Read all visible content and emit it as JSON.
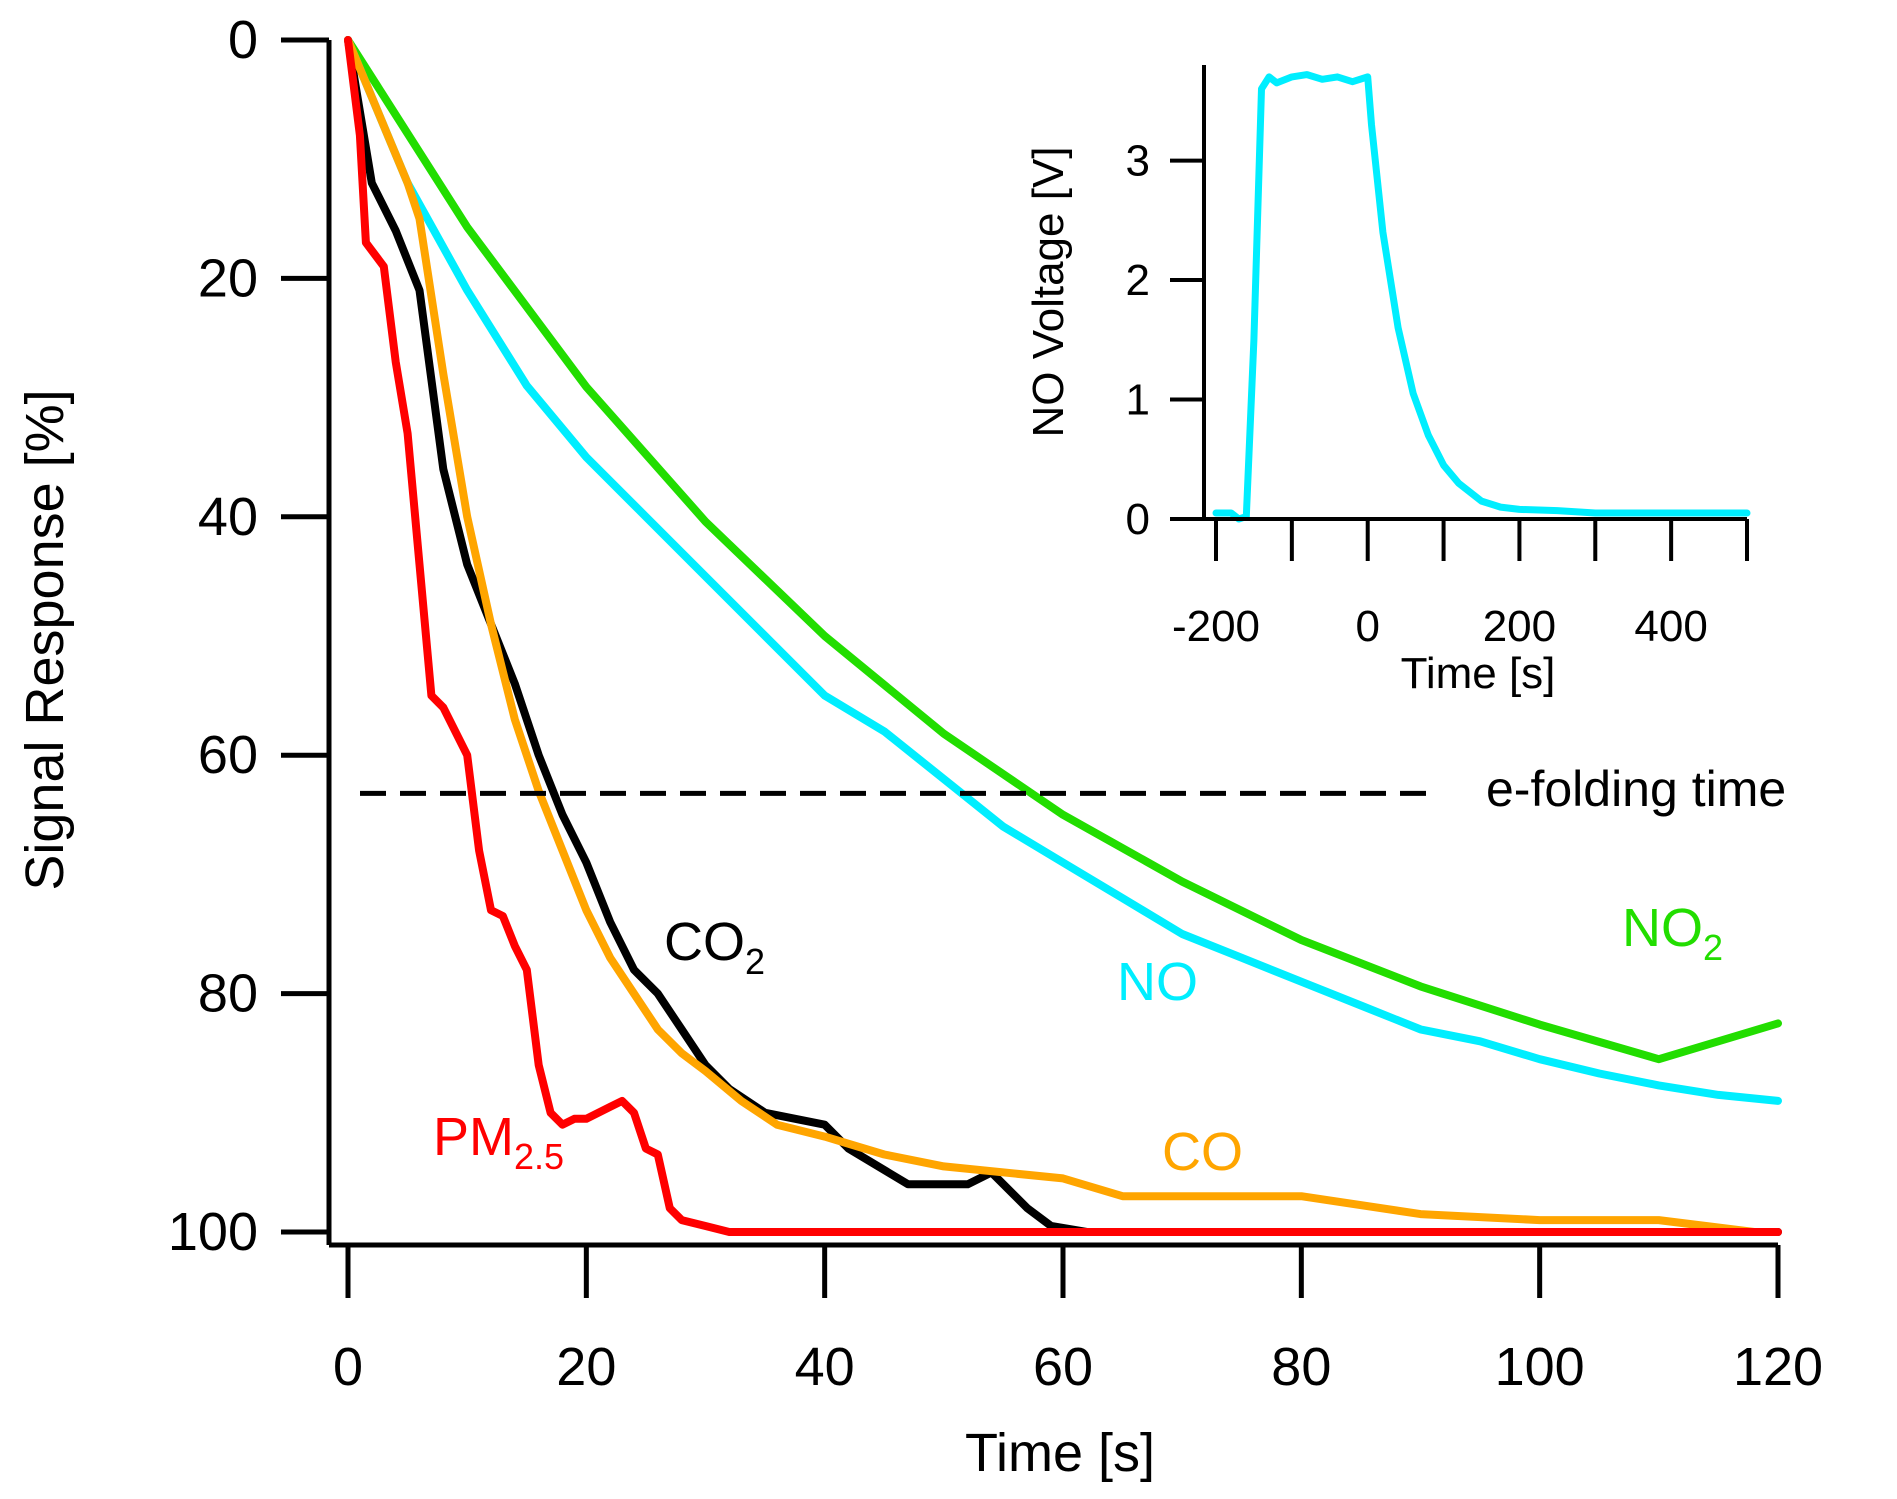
{
  "chart_data": [
    {
      "type": "line",
      "xlabel": "Time [s]",
      "ylabel": "Signal Response [%]",
      "xlim": [
        0,
        120
      ],
      "ylim": [
        0,
        100
      ],
      "y_inverted": true,
      "x_ticks": [
        0,
        20,
        40,
        60,
        80,
        100,
        120
      ],
      "y_ticks": [
        0,
        20,
        40,
        60,
        80,
        100
      ],
      "x_tick_labels": [
        "0",
        "20",
        "40",
        "60",
        "80",
        "100",
        "120"
      ],
      "y_tick_labels": [
        "0",
        "20",
        "40",
        "60",
        "80",
        "100"
      ],
      "reference_line": {
        "label": "e-folding time",
        "y": 63.2,
        "style": "dashed",
        "color": "#000000"
      },
      "series": [
        {
          "name": "NO2",
          "label_main": "NO",
          "label_sub": "2",
          "color": "#22dd00",
          "x": [
            0,
            10,
            20,
            30,
            40,
            50,
            60,
            70,
            80,
            90,
            100,
            110,
            120
          ],
          "values": [
            0,
            15.7,
            29.1,
            40.4,
            50.0,
            58.2,
            65.0,
            70.6,
            75.5,
            79.4,
            82.6,
            85.5,
            82.5
          ]
        },
        {
          "name": "NO",
          "label_main": "NO",
          "label_sub": "",
          "color": "#00eeff",
          "x": [
            0,
            5,
            10,
            15,
            20,
            25,
            30,
            35,
            40,
            45,
            50,
            55,
            60,
            65,
            70,
            75,
            80,
            85,
            90,
            95,
            100,
            105,
            110,
            115,
            120
          ],
          "values": [
            0,
            12,
            21,
            29,
            35,
            40,
            45,
            50,
            55,
            58,
            62,
            66,
            69,
            72,
            75,
            77,
            79,
            81,
            83,
            84,
            85.5,
            86.7,
            87.7,
            88.5,
            89
          ]
        },
        {
          "name": "CO2",
          "label_main": "CO",
          "label_sub": "2",
          "color": "#000000",
          "x": [
            0,
            2,
            4,
            6,
            8,
            10,
            12,
            14,
            16,
            18,
            20,
            22,
            24,
            26,
            28,
            30,
            32,
            35,
            40,
            42,
            47,
            52,
            54,
            57,
            59,
            62,
            120
          ],
          "values": [
            0,
            12,
            16,
            21,
            36,
            44,
            49,
            54,
            60,
            65,
            69,
            74,
            78,
            80,
            83,
            86,
            88,
            90,
            91,
            93,
            96,
            96,
            95,
            98,
            99.5,
            100,
            100
          ]
        },
        {
          "name": "CO",
          "label_main": "CO",
          "label_sub": "",
          "color": "#ffa500",
          "x": [
            0,
            5,
            6,
            8,
            10,
            12,
            14,
            16,
            18,
            20,
            22,
            24,
            26,
            28,
            30,
            33,
            36,
            40,
            45,
            50,
            60,
            65,
            70,
            80,
            90,
            100,
            110,
            118
          ],
          "values": [
            0,
            12,
            15,
            28,
            40,
            49,
            57,
            63,
            68,
            73,
            77,
            80,
            83,
            85,
            86.5,
            89,
            91,
            92,
            93.5,
            94.5,
            95.5,
            97,
            97,
            97,
            98.5,
            99,
            99,
            100
          ]
        },
        {
          "name": "PM2.5",
          "label_main": "PM",
          "label_sub": "2.5",
          "color": "#ff0000",
          "x": [
            0,
            1,
            1.5,
            3,
            4,
            5,
            6,
            7,
            8,
            9,
            10,
            11,
            12,
            13,
            14,
            15,
            16,
            17,
            18,
            19,
            20,
            22,
            23,
            24,
            25,
            26,
            27,
            28,
            30,
            32,
            120
          ],
          "values": [
            0,
            8,
            17,
            19,
            27,
            33,
            44,
            55,
            56,
            58,
            60,
            68,
            73,
            73.5,
            76,
            78,
            86,
            90,
            91,
            90.5,
            90.5,
            89.5,
            89,
            90,
            93,
            93.5,
            98,
            99,
            99.5,
            100,
            100
          ]
        }
      ]
    },
    {
      "type": "line",
      "position": "inset top-right",
      "xlabel": "Time [s]",
      "ylabel": "NO Voltage [V]",
      "xlim": [
        -200,
        500
      ],
      "ylim": [
        0,
        3.8
      ],
      "x_ticks": [
        -200,
        -100,
        0,
        100,
        200,
        300,
        400,
        500
      ],
      "x_tick_labels": [
        "-200",
        "0",
        "200",
        "400"
      ],
      "x_tick_label_values": [
        -200,
        0,
        200,
        400
      ],
      "y_ticks": [
        0,
        1,
        2,
        3
      ],
      "y_tick_labels": [
        "0",
        "1",
        "2",
        "3"
      ],
      "series": [
        {
          "name": "NO",
          "color": "#00eeff",
          "x": [
            -200,
            -180,
            -170,
            -160,
            -150,
            -140,
            -130,
            -120,
            -100,
            -80,
            -60,
            -40,
            -20,
            0,
            5,
            20,
            40,
            60,
            80,
            100,
            120,
            150,
            175,
            200,
            250,
            300,
            350,
            400,
            450,
            500
          ],
          "values": [
            0.05,
            0.05,
            0.0,
            0.02,
            1.5,
            3.6,
            3.7,
            3.65,
            3.7,
            3.72,
            3.68,
            3.7,
            3.66,
            3.7,
            3.3,
            2.4,
            1.6,
            1.05,
            0.7,
            0.45,
            0.3,
            0.15,
            0.1,
            0.08,
            0.07,
            0.05,
            0.05,
            0.05,
            0.05,
            0.05
          ]
        }
      ]
    }
  ]
}
